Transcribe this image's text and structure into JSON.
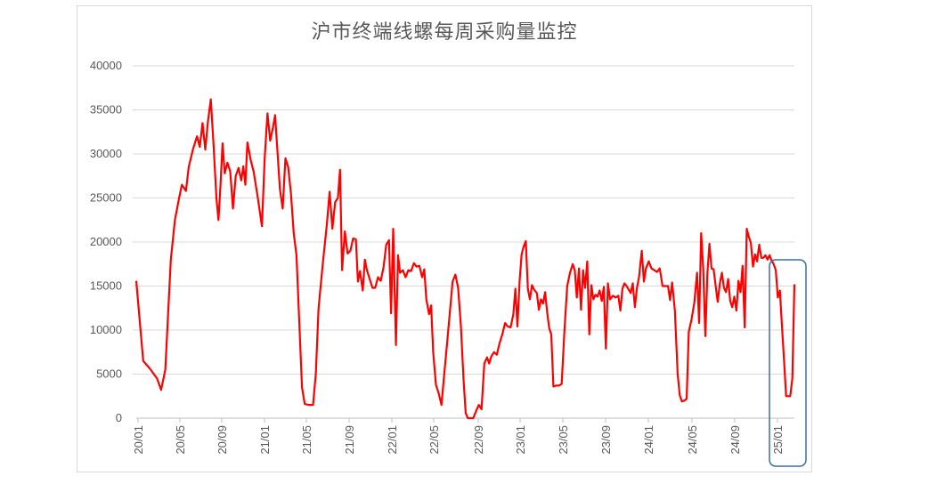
{
  "chart_data": {
    "type": "line",
    "title": "沪市终端线螺每周采购量监控",
    "xlabel": "",
    "ylabel": "",
    "ylim": [
      0,
      40000
    ],
    "y_ticks": [
      "0",
      "5000",
      "10000",
      "15000",
      "20000",
      "25000",
      "30000",
      "35000",
      "40000"
    ],
    "x_ticks": [
      "20/01",
      "20/05",
      "20/09",
      "21/01",
      "21/05",
      "21/09",
      "22/01",
      "22/05",
      "22/09",
      "23/01",
      "23/05",
      "23/09",
      "24/01",
      "24/05",
      "24/09",
      "25/01"
    ],
    "grid": "horizontal",
    "legend": "none",
    "colors": {
      "series": "#ff0000",
      "grid": "#d9d9d9",
      "highlight_box": "#3a6ea5"
    },
    "highlight_range": [
      "24/12",
      "25/02"
    ],
    "series": [
      {
        "color": "#ff0000",
        "points": [
          [
            0,
            15600
          ],
          [
            0.5,
            6500
          ],
          [
            1,
            5600
          ],
          [
            1.5,
            4500
          ],
          [
            1.8,
            3200
          ],
          [
            2.1,
            5500
          ],
          [
            2.5,
            18000
          ],
          [
            2.8,
            22500
          ],
          [
            3.1,
            25000
          ],
          [
            3.3,
            26500
          ],
          [
            3.6,
            25800
          ],
          [
            3.8,
            28500
          ],
          [
            4.1,
            30500
          ],
          [
            4.4,
            32000
          ],
          [
            4.6,
            30800
          ],
          [
            4.8,
            33500
          ],
          [
            5.0,
            30500
          ],
          [
            5.2,
            33800
          ],
          [
            5.4,
            36200
          ],
          [
            5.6,
            31000
          ],
          [
            5.8,
            25000
          ],
          [
            5.95,
            22500
          ],
          [
            6.1,
            26500
          ],
          [
            6.25,
            31200
          ],
          [
            6.4,
            27800
          ],
          [
            6.6,
            29000
          ],
          [
            6.8,
            28000
          ],
          [
            7.0,
            23800
          ],
          [
            7.2,
            27500
          ],
          [
            7.4,
            28400
          ],
          [
            7.6,
            27000
          ],
          [
            7.75,
            28600
          ],
          [
            7.9,
            26500
          ],
          [
            8.05,
            31300
          ],
          [
            8.3,
            29200
          ],
          [
            8.5,
            28000
          ],
          [
            8.8,
            25000
          ],
          [
            9.1,
            21800
          ],
          [
            9.3,
            29500
          ],
          [
            9.5,
            34600
          ],
          [
            9.7,
            31500
          ],
          [
            9.9,
            33000
          ],
          [
            10.05,
            34400
          ],
          [
            10.2,
            30800
          ],
          [
            10.4,
            26000
          ],
          [
            10.6,
            23800
          ],
          [
            10.8,
            29500
          ],
          [
            11.0,
            28500
          ],
          [
            11.2,
            25500
          ],
          [
            11.4,
            21000
          ],
          [
            11.6,
            18500
          ],
          [
            11.8,
            11000
          ],
          [
            12.0,
            3500
          ],
          [
            12.2,
            1600
          ],
          [
            12.5,
            1500
          ],
          [
            12.8,
            1500
          ],
          [
            13.0,
            5000
          ],
          [
            13.2,
            12500
          ],
          [
            13.5,
            17500
          ],
          [
            13.8,
            22000
          ],
          [
            14.0,
            25700
          ],
          [
            14.2,
            21500
          ],
          [
            14.4,
            24500
          ],
          [
            14.6,
            25000
          ],
          [
            14.75,
            28200
          ],
          [
            14.9,
            16800
          ],
          [
            15.1,
            21200
          ],
          [
            15.3,
            18700
          ],
          [
            15.5,
            19000
          ],
          [
            15.7,
            20400
          ],
          [
            15.9,
            20300
          ],
          [
            16.05,
            15500
          ],
          [
            16.2,
            16700
          ],
          [
            16.4,
            14500
          ],
          [
            16.55,
            18000
          ],
          [
            16.7,
            16800
          ],
          [
            16.9,
            15800
          ],
          [
            17.1,
            14800
          ],
          [
            17.3,
            14800
          ],
          [
            17.5,
            16000
          ],
          [
            17.7,
            15600
          ],
          [
            17.9,
            17100
          ],
          [
            18.1,
            19700
          ],
          [
            18.3,
            20200
          ],
          [
            18.45,
            11900
          ],
          [
            18.6,
            21500
          ],
          [
            18.8,
            8300
          ],
          [
            18.95,
            18500
          ],
          [
            19.1,
            16500
          ],
          [
            19.3,
            16800
          ],
          [
            19.5,
            16000
          ],
          [
            19.7,
            16800
          ],
          [
            19.9,
            16700
          ],
          [
            20.1,
            17600
          ],
          [
            20.3,
            17200
          ],
          [
            20.5,
            17300
          ],
          [
            20.7,
            16000
          ],
          [
            20.85,
            16900
          ],
          [
            21.0,
            13500
          ],
          [
            21.2,
            11800
          ],
          [
            21.35,
            12800
          ],
          [
            21.5,
            7500
          ],
          [
            21.7,
            3800
          ],
          [
            21.9,
            2800
          ],
          [
            22.1,
            1500
          ],
          [
            22.3,
            5000
          ],
          [
            22.5,
            8500
          ],
          [
            22.7,
            12000
          ],
          [
            22.9,
            15500
          ],
          [
            23.1,
            16300
          ],
          [
            23.3,
            14800
          ],
          [
            23.5,
            10500
          ],
          [
            23.7,
            4200
          ],
          [
            23.85,
            600
          ],
          [
            24.0,
            0
          ],
          [
            24.2,
            0
          ],
          [
            24.4,
            0
          ],
          [
            24.6,
            800
          ],
          [
            24.8,
            1500
          ],
          [
            25.0,
            1000
          ],
          [
            25.2,
            6200
          ],
          [
            25.4,
            6900
          ],
          [
            25.55,
            6200
          ],
          [
            25.7,
            7000
          ],
          [
            25.9,
            7500
          ],
          [
            26.1,
            7200
          ],
          [
            26.3,
            8500
          ],
          [
            26.5,
            9500
          ],
          [
            26.7,
            10800
          ],
          [
            26.9,
            10400
          ],
          [
            27.1,
            10300
          ],
          [
            27.3,
            11800
          ],
          [
            27.45,
            14700
          ],
          [
            27.6,
            10400
          ],
          [
            27.75,
            15500
          ],
          [
            27.9,
            18600
          ],
          [
            28.05,
            19500
          ],
          [
            28.2,
            20100
          ],
          [
            28.35,
            14700
          ],
          [
            28.5,
            13500
          ],
          [
            28.65,
            15100
          ],
          [
            28.8,
            14600
          ],
          [
            29.0,
            14200
          ],
          [
            29.15,
            12300
          ],
          [
            29.3,
            13500
          ],
          [
            29.45,
            13000
          ],
          [
            29.6,
            14300
          ],
          [
            29.75,
            12000
          ],
          [
            29.9,
            10200
          ],
          [
            30.05,
            9500
          ],
          [
            30.2,
            3600
          ],
          [
            30.4,
            3700
          ],
          [
            30.6,
            3700
          ],
          [
            30.8,
            3900
          ],
          [
            31.0,
            10000
          ],
          [
            31.2,
            15000
          ],
          [
            31.4,
            16500
          ],
          [
            31.6,
            17500
          ],
          [
            31.75,
            16800
          ],
          [
            31.9,
            13700
          ],
          [
            32.05,
            17000
          ],
          [
            32.2,
            12300
          ],
          [
            32.35,
            16800
          ],
          [
            32.5,
            14800
          ],
          [
            32.65,
            17800
          ],
          [
            32.8,
            9500
          ],
          [
            32.95,
            15100
          ],
          [
            33.1,
            13500
          ],
          [
            33.25,
            14000
          ],
          [
            33.4,
            13800
          ],
          [
            33.55,
            14500
          ],
          [
            33.7,
            13300
          ],
          [
            33.85,
            14900
          ],
          [
            34.0,
            7900
          ],
          [
            34.15,
            15300
          ],
          [
            34.3,
            13500
          ],
          [
            34.5,
            13900
          ],
          [
            34.7,
            13700
          ],
          [
            34.9,
            13900
          ],
          [
            35.05,
            12200
          ],
          [
            35.2,
            14700
          ],
          [
            35.35,
            15300
          ],
          [
            35.5,
            15000
          ],
          [
            35.65,
            14600
          ],
          [
            35.8,
            14200
          ],
          [
            35.95,
            15300
          ],
          [
            36.1,
            12600
          ],
          [
            36.25,
            14800
          ],
          [
            36.4,
            16000
          ],
          [
            36.6,
            19000
          ],
          [
            36.75,
            15500
          ],
          [
            36.9,
            17000
          ],
          [
            37.1,
            17800
          ],
          [
            37.3,
            17000
          ],
          [
            37.5,
            16800
          ],
          [
            37.7,
            16600
          ],
          [
            37.9,
            17000
          ],
          [
            38.1,
            15000
          ],
          [
            38.3,
            15000
          ],
          [
            38.5,
            15000
          ],
          [
            38.65,
            13400
          ],
          [
            38.8,
            15400
          ],
          [
            39.0,
            12200
          ],
          [
            39.2,
            5000
          ],
          [
            39.35,
            2600
          ],
          [
            39.5,
            1900
          ],
          [
            39.7,
            2000
          ],
          [
            39.85,
            2200
          ],
          [
            40.0,
            9800
          ],
          [
            40.2,
            11200
          ],
          [
            40.4,
            13100
          ],
          [
            40.6,
            16500
          ],
          [
            40.75,
            10800
          ],
          [
            40.9,
            21000
          ],
          [
            41.05,
            17000
          ],
          [
            41.2,
            9300
          ],
          [
            41.35,
            16400
          ],
          [
            41.5,
            19800
          ],
          [
            41.65,
            17000
          ],
          [
            41.8,
            16900
          ],
          [
            41.95,
            15000
          ],
          [
            42.1,
            13200
          ],
          [
            42.25,
            15300
          ],
          [
            42.4,
            16500
          ],
          [
            42.55,
            14800
          ],
          [
            42.7,
            14300
          ],
          [
            42.85,
            15800
          ],
          [
            43.0,
            13300
          ],
          [
            43.15,
            12600
          ],
          [
            43.3,
            13800
          ],
          [
            43.45,
            12200
          ],
          [
            43.6,
            15600
          ],
          [
            43.75,
            14300
          ],
          [
            43.9,
            17300
          ],
          [
            44.05,
            10300
          ],
          [
            44.2,
            21500
          ],
          [
            44.35,
            20600
          ],
          [
            44.5,
            19900
          ],
          [
            44.65,
            17200
          ],
          [
            44.8,
            18600
          ],
          [
            44.95,
            17800
          ],
          [
            45.1,
            19700
          ],
          [
            45.25,
            18200
          ],
          [
            45.4,
            18200
          ],
          [
            45.55,
            18500
          ],
          [
            45.7,
            18000
          ],
          [
            45.85,
            18500
          ],
          [
            46.0,
            17900
          ],
          [
            46.15,
            17500
          ],
          [
            46.3,
            16800
          ],
          [
            46.45,
            13700
          ],
          [
            46.6,
            14500
          ],
          [
            46.75,
            10500
          ],
          [
            46.9,
            6500
          ],
          [
            47.05,
            2500
          ],
          [
            47.2,
            2500
          ],
          [
            47.35,
            2500
          ],
          [
            47.5,
            4500
          ],
          [
            47.65,
            15200
          ]
        ]
      }
    ]
  }
}
